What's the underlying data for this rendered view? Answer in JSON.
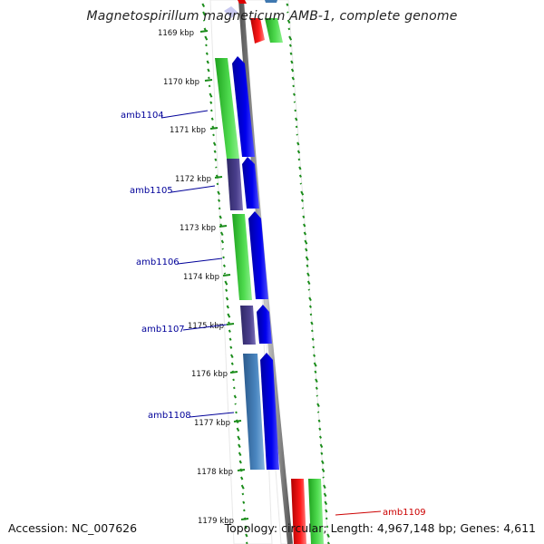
{
  "title": "Magnetospirillum magneticum AMB-1, complete genome",
  "accession": "Accession: NC_007626",
  "summary": "Topology: circular; Length: 4,967,148 bp; Genes: 4,611",
  "ticks": [
    "1169 kbp",
    "1170 kbp",
    "1171 kbp",
    "1172 kbp",
    "1173 kbp",
    "1174 kbp",
    "1175 kbp",
    "1176 kbp",
    "1177 kbp",
    "1178 kbp",
    "1179 kbp"
  ],
  "genes": [
    {
      "name": "amb1104",
      "color": "#000099"
    },
    {
      "name": "amb1105",
      "color": "#000099"
    },
    {
      "name": "amb1106",
      "color": "#000099"
    },
    {
      "name": "amb1107",
      "color": "#000099"
    },
    {
      "name": "amb1108",
      "color": "#000099"
    },
    {
      "name": "amb1109",
      "color": "#cc0000"
    }
  ],
  "colors": {
    "cog_green": "#3ccc3c",
    "cog_purple": "#4a3f8c",
    "cog_steelblue": "#3f78b0",
    "cog_red": "#ee0000",
    "cds_blue": "#0000ee",
    "backbone": "#8a8a8a",
    "dots": "#1a8c1a"
  }
}
